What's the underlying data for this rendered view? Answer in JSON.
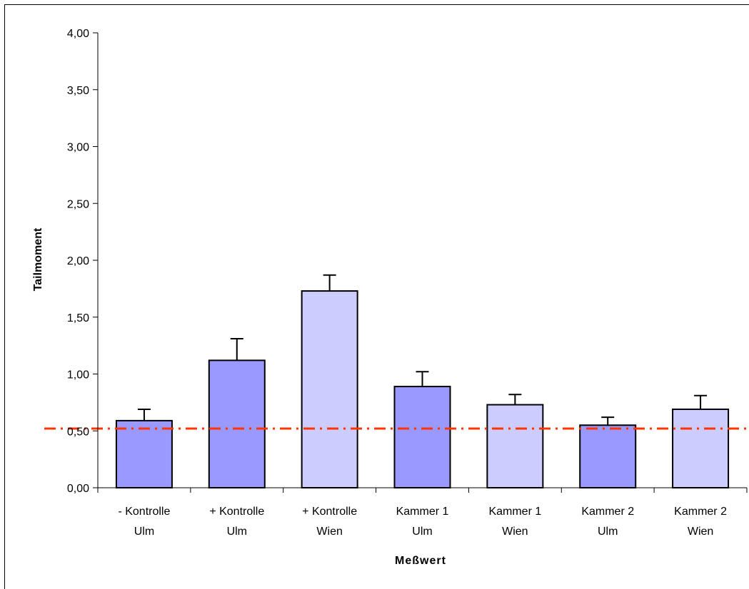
{
  "chart_data": {
    "type": "bar",
    "title": "",
    "xlabel": "Meßwert",
    "ylabel": "Tailmoment",
    "ylim": [
      0,
      4
    ],
    "yticks": [
      "0,00",
      "0,50",
      "1,00",
      "1,50",
      "2,00",
      "2,50",
      "3,00",
      "3,50",
      "4,00"
    ],
    "categories": [
      [
        "- Kontrolle",
        "Ulm"
      ],
      [
        "+ Kontrolle",
        "Ulm"
      ],
      [
        "+  Kontrolle",
        "Wien"
      ],
      [
        "Kammer 1",
        "Ulm"
      ],
      [
        "Kammer 1",
        "Wien"
      ],
      [
        "Kammer 2",
        "Ulm"
      ],
      [
        "Kammer 2",
        "Wien"
      ]
    ],
    "values": [
      0.59,
      1.12,
      1.73,
      0.89,
      0.73,
      0.55,
      0.69
    ],
    "error_upper": [
      0.1,
      0.19,
      0.14,
      0.13,
      0.09,
      0.07,
      0.12
    ],
    "bar_colors": [
      "#9999ff",
      "#9999ff",
      "#ccccff",
      "#9999ff",
      "#ccccff",
      "#9999ff",
      "#ccccff"
    ],
    "reference_line": {
      "value": 0.52,
      "color": "#ff3300",
      "style": "dash-dot"
    },
    "grid": false,
    "legend": "none"
  }
}
